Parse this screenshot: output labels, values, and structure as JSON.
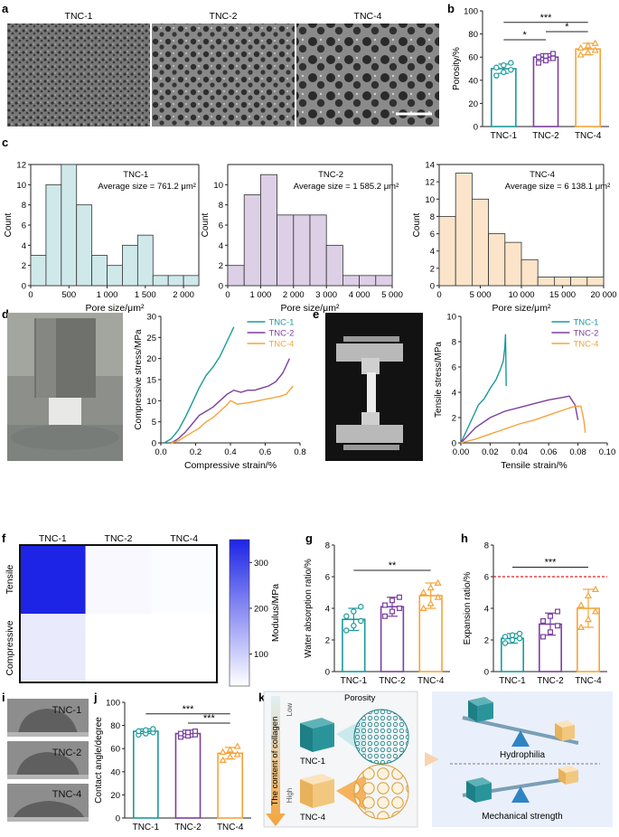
{
  "panel_labels": {
    "a": "a",
    "b": "b",
    "c": "c",
    "d": "d",
    "e": "e",
    "f": "f",
    "g": "g",
    "h": "h",
    "i": "i",
    "j": "j",
    "k": "k"
  },
  "sem": {
    "labels": [
      "TNC-1",
      "TNC-2",
      "TNC-4"
    ]
  },
  "colors": {
    "tnc1": "#1a9a9a",
    "tnc2": "#7b3fa0",
    "tnc4": "#f5a33a",
    "hist1": "#cfe9ea",
    "hist2": "#dccfe6",
    "hist4": "#fbe4c9",
    "heat_hi": "#1d24e6",
    "heat_lo": "#ffffff",
    "dashed": "#e02020"
  },
  "chart_data": [
    {
      "id": "b",
      "type": "bar",
      "categories": [
        "TNC-1",
        "TNC-2",
        "TNC-4"
      ],
      "values": [
        50,
        60,
        67
      ],
      "errors": [
        4,
        3,
        5
      ],
      "points": [
        [
          44,
          47,
          49,
          51,
          53,
          55
        ],
        [
          55,
          57,
          59,
          60,
          61,
          63
        ],
        [
          62,
          64,
          66,
          68,
          70,
          72
        ]
      ],
      "ylabel": "Porosity/%",
      "ylim": [
        0,
        100
      ],
      "yticks": [
        0,
        20,
        40,
        60,
        80,
        100
      ],
      "sig": [
        {
          "from": 0,
          "to": 1,
          "label": "*",
          "y": 75
        },
        {
          "from": 1,
          "to": 2,
          "label": "*",
          "y": 82
        },
        {
          "from": 0,
          "to": 2,
          "label": "***",
          "y": 90
        }
      ]
    },
    {
      "id": "c1",
      "type": "bar",
      "title": "TNC-1",
      "annotation": "Average size = 761.2 μm²",
      "bin_edges": [
        0,
        200,
        400,
        600,
        800,
        1000,
        1200,
        1400,
        1600,
        1800,
        2000,
        2200
      ],
      "values": [
        3,
        10,
        12,
        8,
        3,
        2,
        4,
        5,
        1,
        1,
        1
      ],
      "xlabel": "Pore size/μm²",
      "ylabel": "Count",
      "ylim": [
        0,
        12
      ],
      "yticks": [
        0,
        2,
        4,
        6,
        8,
        10,
        12
      ],
      "xticks": [
        0,
        500,
        1000,
        1500,
        2000
      ],
      "xticklabels": [
        "0",
        "500",
        "1 000",
        "1 500",
        "2 000"
      ]
    },
    {
      "id": "c2",
      "type": "bar",
      "title": "TNC-2",
      "annotation": "Average size = 1 585.2 μm²",
      "bin_edges": [
        0,
        500,
        1000,
        1500,
        2000,
        2500,
        3000,
        3500,
        4000,
        4500,
        5000
      ],
      "values": [
        2,
        9,
        11,
        7,
        7,
        7,
        4,
        1,
        1,
        1
      ],
      "xlabel": "Pore size/μm²",
      "ylabel": "Count",
      "ylim": [
        0,
        12
      ],
      "yticks": [
        0,
        2,
        4,
        6,
        8,
        10
      ],
      "xticks": [
        0,
        1000,
        2000,
        3000,
        4000,
        5000
      ],
      "xticklabels": [
        "0",
        "1 000",
        "2 000",
        "3 000",
        "4 000",
        "5 000"
      ]
    },
    {
      "id": "c4",
      "type": "bar",
      "title": "TNC-4",
      "annotation": "Average size = 6 138.1 μm²",
      "bin_edges": [
        0,
        2000,
        4000,
        6000,
        8000,
        10000,
        12000,
        14000,
        16000,
        18000,
        20000
      ],
      "values": [
        8,
        13,
        10,
        6,
        5,
        3,
        1,
        1,
        1,
        1
      ],
      "xlabel": "Pore size/μm²",
      "ylabel": "Count",
      "ylim": [
        0,
        14
      ],
      "yticks": [
        0,
        2,
        4,
        6,
        8,
        10,
        12,
        14
      ],
      "xticks": [
        0,
        5000,
        10000,
        15000,
        20000
      ],
      "xticklabels": [
        "0",
        "5 000",
        "10 000",
        "15 000",
        "20 000"
      ]
    },
    {
      "id": "d",
      "type": "line",
      "xlabel": "Compressive strain/%",
      "ylabel": "Compressive stress/MPa",
      "xlim": [
        0,
        0.8
      ],
      "ylim": [
        0,
        30
      ],
      "xticks": [
        0,
        0.2,
        0.4,
        0.6,
        0.8
      ],
      "xticklabels": [
        "0.0",
        "0.2",
        "0.4",
        "0.6",
        "0.8"
      ],
      "yticks": [
        0,
        5,
        10,
        15,
        20,
        25,
        30
      ],
      "series": [
        {
          "name": "TNC-1",
          "x": [
            0.02,
            0.06,
            0.1,
            0.14,
            0.18,
            0.22,
            0.26,
            0.3,
            0.34,
            0.38,
            0.42
          ],
          "y": [
            0,
            1,
            3,
            6,
            9.5,
            13,
            16,
            18,
            20.5,
            24,
            27.5
          ]
        },
        {
          "name": "TNC-2",
          "x": [
            0.06,
            0.1,
            0.14,
            0.18,
            0.22,
            0.26,
            0.3,
            0.34,
            0.38,
            0.42,
            0.46,
            0.5,
            0.54,
            0.58,
            0.62,
            0.66,
            0.7,
            0.74
          ],
          "y": [
            0,
            1,
            2.5,
            4.5,
            6.5,
            7.5,
            8.5,
            10,
            11.5,
            12.5,
            12,
            12.5,
            12.5,
            13,
            13.5,
            14.5,
            16.5,
            20
          ]
        },
        {
          "name": "TNC-4",
          "x": [
            0.06,
            0.1,
            0.14,
            0.18,
            0.22,
            0.26,
            0.3,
            0.34,
            0.38,
            0.4,
            0.44,
            0.5,
            0.56,
            0.62,
            0.68,
            0.72,
            0.76
          ],
          "y": [
            0,
            0.5,
            1.5,
            2.5,
            3.5,
            5,
            6,
            7.5,
            9,
            10,
            9.2,
            9.5,
            10,
            10.5,
            11,
            11.5,
            13.5
          ]
        }
      ]
    },
    {
      "id": "e",
      "type": "line",
      "xlabel": "Tensile strain/%",
      "ylabel": "Tensile stress/MPa",
      "xlim": [
        0,
        0.1
      ],
      "ylim": [
        0,
        10
      ],
      "xticks": [
        0,
        0.02,
        0.04,
        0.06,
        0.08,
        0.1
      ],
      "xticklabels": [
        "0.00",
        "0.02",
        "0.04",
        "0.06",
        "0.08",
        "0.10"
      ],
      "yticks": [
        0,
        2,
        4,
        6,
        8,
        10
      ],
      "series": [
        {
          "name": "TNC-1",
          "x": [
            0,
            0.004,
            0.008,
            0.012,
            0.016,
            0.02,
            0.024,
            0.027,
            0.029,
            0.03,
            0.0305,
            0.031
          ],
          "y": [
            0,
            1,
            2,
            3,
            3.5,
            4.3,
            5,
            5.8,
            6.5,
            7.5,
            8.6,
            4.5
          ]
        },
        {
          "name": "TNC-2",
          "x": [
            0,
            0.005,
            0.01,
            0.02,
            0.03,
            0.04,
            0.05,
            0.06,
            0.07,
            0.074,
            0.078,
            0.08
          ],
          "y": [
            0,
            0.6,
            1.2,
            2,
            2.5,
            2.8,
            3.1,
            3.4,
            3.6,
            3.7,
            3,
            1.8
          ]
        },
        {
          "name": "TNC-4",
          "x": [
            0,
            0.01,
            0.02,
            0.03,
            0.04,
            0.05,
            0.06,
            0.07,
            0.078,
            0.082,
            0.084,
            0.085
          ],
          "y": [
            0,
            0.3,
            0.7,
            1.1,
            1.5,
            1.8,
            2.2,
            2.6,
            2.9,
            2.9,
            1.8,
            0.8
          ]
        }
      ]
    },
    {
      "id": "f",
      "type": "heatmap",
      "columns": [
        "TNC-1",
        "TNC-2",
        "TNC-4"
      ],
      "rows": [
        "Tensile",
        "Compressive"
      ],
      "values": [
        [
          350,
          40,
          35
        ],
        [
          60,
          30,
          28
        ]
      ],
      "colorbar_label": "Modulus/MPa",
      "colorbar_ticks": [
        100,
        200,
        300
      ],
      "vmin": 30,
      "vmax": 350
    },
    {
      "id": "g",
      "type": "bar",
      "categories": [
        "TNC-1",
        "TNC-2",
        "TNC-4"
      ],
      "values": [
        3.3,
        4.1,
        4.8
      ],
      "errors": [
        0.7,
        0.6,
        0.8
      ],
      "points": [
        [
          2.6,
          2.9,
          3.2,
          3.5,
          3.8,
          4.1
        ],
        [
          3.5,
          3.8,
          4.0,
          4.2,
          4.5,
          4.7
        ],
        [
          4.0,
          4.3,
          4.7,
          5.0,
          5.3,
          5.6
        ]
      ],
      "ylabel": "Water absorption ratio/%",
      "ylim": [
        0,
        8
      ],
      "yticks": [
        0,
        2,
        4,
        6,
        8
      ],
      "sig": [
        {
          "from": 0,
          "to": 2,
          "label": "**",
          "y": 6.4
        }
      ]
    },
    {
      "id": "h",
      "type": "bar",
      "categories": [
        "TNC-1",
        "TNC-2",
        "TNC-4"
      ],
      "values": [
        2.1,
        3.0,
        4.0
      ],
      "errors": [
        0.3,
        0.7,
        1.2
      ],
      "points": [
        [
          1.8,
          2.0,
          2.1,
          2.2,
          2.3,
          2.4
        ],
        [
          2.2,
          2.5,
          2.9,
          3.2,
          3.5,
          3.8
        ],
        [
          2.8,
          3.3,
          3.8,
          4.2,
          4.8,
          5.2
        ]
      ],
      "ylabel": "Expansion ratio/%",
      "ylim": [
        0,
        8
      ],
      "yticks": [
        0,
        2,
        4,
        6,
        8
      ],
      "hline": 6,
      "sig": [
        {
          "from": 0,
          "to": 2,
          "label": "***",
          "y": 6.6
        }
      ]
    },
    {
      "id": "j",
      "type": "bar",
      "categories": [
        "TNC-1",
        "TNC-2",
        "TNC-4"
      ],
      "values": [
        75,
        73,
        56
      ],
      "errors": [
        2,
        3,
        5
      ],
      "points": [
        [
          72,
          73,
          74,
          75,
          76,
          77
        ],
        [
          70,
          71,
          72,
          73,
          74,
          75
        ],
        [
          50,
          53,
          55,
          57,
          59,
          62
        ]
      ],
      "ylabel": "Contact angle/degree",
      "ylim": [
        0,
        100
      ],
      "yticks": [
        0,
        20,
        40,
        60,
        80,
        100
      ],
      "sig": [
        {
          "from": 1,
          "to": 2,
          "label": "***",
          "y": 82
        },
        {
          "from": 0,
          "to": 2,
          "label": "***",
          "y": 90
        }
      ]
    }
  ],
  "drops": [
    "TNC-1",
    "TNC-2",
    "TNC-4"
  ],
  "schematic": {
    "axis_label": "The content of collagen",
    "low": "Low",
    "high": "High",
    "porosity": "Porosity",
    "tnc1": "TNC-1",
    "tnc4": "TNC-4",
    "hydrophilia": "Hydrophilia",
    "mech": "Mechanical strength"
  }
}
